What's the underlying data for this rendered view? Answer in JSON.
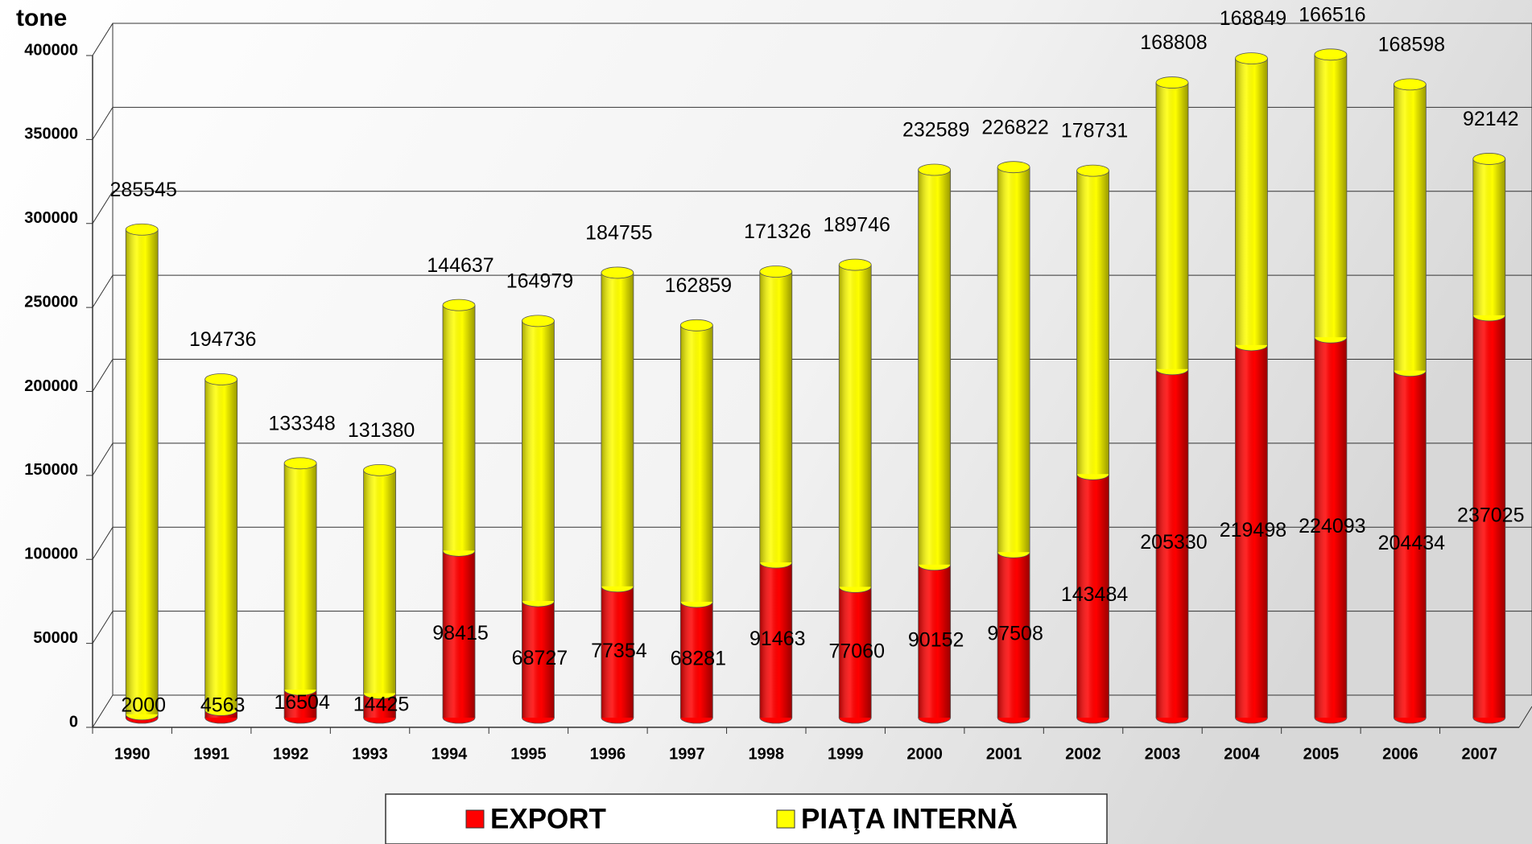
{
  "chart_data": {
    "type": "bar",
    "stacked": true,
    "y_label": "tone",
    "categories": [
      "1990",
      "1991",
      "1992",
      "1993",
      "1994",
      "1995",
      "1996",
      "1997",
      "1998",
      "1999",
      "2000",
      "2001",
      "2002",
      "2003",
      "2004",
      "2005",
      "2006",
      "2007"
    ],
    "series": [
      {
        "name": "EXPORT",
        "color": "#ff0000",
        "values": [
          2000,
          4563,
          16504,
          14425,
          98415,
          68727,
          77354,
          68281,
          91463,
          77060,
          90152,
          97508,
          143484,
          205330,
          219498,
          224093,
          204434,
          237025
        ]
      },
      {
        "name": "PIAŢA INTERNĂ",
        "color": "#ffff00",
        "values": [
          285545,
          194736,
          133348,
          131380,
          144637,
          164979,
          184755,
          162859,
          171326,
          189746,
          232589,
          226822,
          178731,
          168808,
          168849,
          166516,
          168598,
          92142
        ]
      }
    ],
    "ylim": [
      0,
      400000
    ],
    "yticks": [
      0,
      50000,
      100000,
      150000,
      200000,
      250000,
      300000,
      350000,
      400000
    ],
    "grid": true,
    "legend": "bottom"
  }
}
